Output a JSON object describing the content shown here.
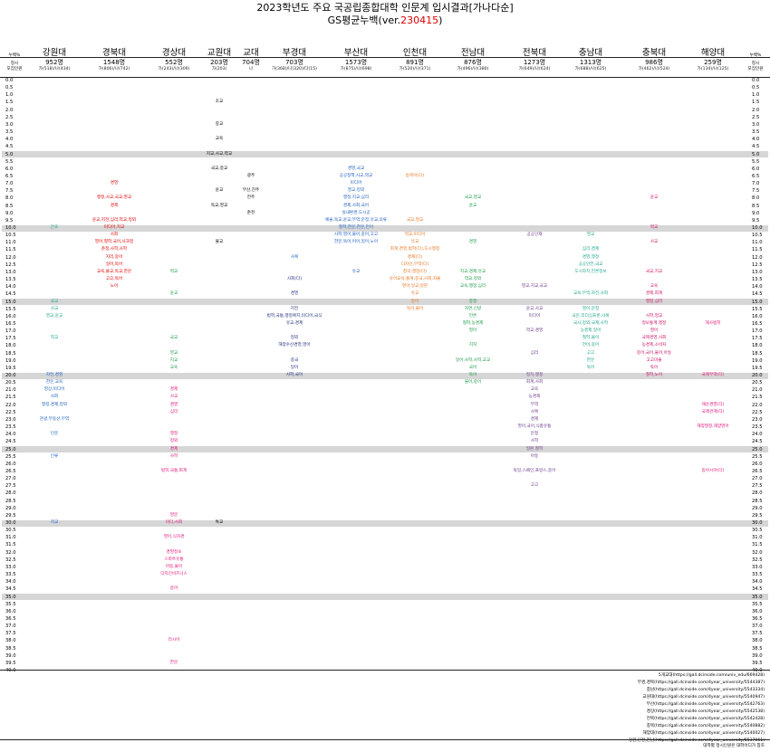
{
  "title": "2023학년도 주요 국공립종합대학 인문계 입시결과[가나다순]",
  "subtitle_prefix": "GS평균누백(ver.",
  "subtitle_version": "230415",
  "subtitle_suffix": ")",
  "side_header": {
    "top": "누백%",
    "row2a": "정시",
    "row2b": "모집인원"
  },
  "colors": {
    "red": "#e00000",
    "orange": "#e87722",
    "blue": "#1f5fbf",
    "green": "#1a9a4a",
    "purple": "#6a3a8a",
    "pink": "#e0137a",
    "magenta": "#cc1166",
    "teal": "#1ea58c",
    "navy": "#20307a",
    "black": "#000000",
    "band": "#d6d6d6"
  },
  "universities": [
    {
      "name": "강원대",
      "count": "952명",
      "sub": "가(518)/나(434)"
    },
    {
      "name": "경북대",
      "count": "1548명",
      "sub": "가(806)/나(742)"
    },
    {
      "name": "경상대",
      "count": "552명",
      "sub": "가(243)/나(309)"
    },
    {
      "name": "교원대",
      "count": "203명",
      "sub": "가(203)"
    },
    {
      "name": "교대",
      "count": "704명",
      "sub": "나"
    },
    {
      "name": "부경대",
      "count": "703명",
      "sub": "가(368)/나(320)/다(15)"
    },
    {
      "name": "부산대",
      "count": "1573명",
      "sub": "가(875)/나(698)"
    },
    {
      "name": "인천대",
      "count": "891명",
      "sub": "가(520)/나(371)"
    },
    {
      "name": "전남대",
      "count": "876명",
      "sub": "가(496)/나(380)"
    },
    {
      "name": "전북대",
      "count": "1273명",
      "sub": "가(649)/나(624)"
    },
    {
      "name": "충남대",
      "count": "1313명",
      "sub": "가(688)/나(625)"
    },
    {
      "name": "충북대",
      "count": "986명",
      "sub": "가(462)/나(524)"
    },
    {
      "name": "해양대",
      "count": "259명",
      "sub": "가(134)/나(125)"
    }
  ],
  "y_labels": [
    "0.0",
    "0.5",
    "1.0",
    "1.5",
    "2.0",
    "2.5",
    "3.0",
    "3.5",
    "4.0",
    "4.5",
    "5.0",
    "5.5",
    "6.0",
    "6.5",
    "7.0",
    "7.5",
    "8.0",
    "8.5",
    "9.0",
    "9.5",
    "10.0",
    "10.5",
    "11.0",
    "11.5",
    "12.0",
    "12.5",
    "13.0",
    "13.5",
    "14.0",
    "14.5",
    "15.0",
    "15.5",
    "16.0",
    "16.5",
    "17.0",
    "17.5",
    "18.0",
    "18.5",
    "19.0",
    "19.5",
    "20.0",
    "20.5",
    "21.0",
    "21.5",
    "22.0",
    "22.5",
    "23.0",
    "23.5",
    "24.0",
    "24.5",
    "25.0",
    "25.5",
    "26.0",
    "26.5",
    "27.0",
    "27.5",
    "28.0",
    "28.5",
    "29.0",
    "29.5",
    "30.0",
    "30.5",
    "31.0",
    "31.5",
    "32.0",
    "32.5",
    "33.0",
    "33.5",
    "34.0",
    "34.5",
    "35.0",
    "35.5",
    "36.0",
    "36.5",
    "37.0",
    "37.5",
    "38.0",
    "38.5",
    "39.0",
    "39.5",
    "40.0"
  ],
  "entries": [
    {
      "col": 3,
      "p": 1.5,
      "t": "초교",
      "c": "black"
    },
    {
      "col": 3,
      "p": 3.0,
      "t": "중교",
      "c": "black"
    },
    {
      "col": 3,
      "p": 4.0,
      "t": "교육",
      "c": "black"
    },
    {
      "col": 3,
      "p": 5.0,
      "t": "지교,사교,역교",
      "c": "black"
    },
    {
      "col": 3,
      "p": 6.0,
      "t": "국교,중교",
      "c": "black"
    },
    {
      "col": 4,
      "p": 6.5,
      "t": "광주",
      "c": "black"
    },
    {
      "col": 3,
      "p": 7.5,
      "t": "윤교",
      "c": "black"
    },
    {
      "col": 4,
      "p": 7.5,
      "t": "부산,진주",
      "c": "black"
    },
    {
      "col": 4,
      "p": 8.0,
      "t": "전주",
      "c": "black"
    },
    {
      "col": 3,
      "p": 8.5,
      "t": "독교,영교",
      "c": "black"
    },
    {
      "col": 4,
      "p": 9.0,
      "t": "춘천",
      "c": "black"
    },
    {
      "col": 3,
      "p": 11.0,
      "t": "불교",
      "c": "black"
    },
    {
      "col": 3,
      "p": 30.0,
      "t": "특교",
      "c": "black"
    },
    {
      "col": 1,
      "p": 7.0,
      "t": "경영",
      "c": "red"
    },
    {
      "col": 1,
      "p": 8.0,
      "t": "행정,사교,국교,영교",
      "c": "red"
    },
    {
      "col": 1,
      "p": 8.5,
      "t": "경제",
      "c": "red"
    },
    {
      "col": 1,
      "p": 9.5,
      "t": "윤교,지전,심리,역교,정외",
      "c": "red"
    },
    {
      "col": 1,
      "p": 10.0,
      "t": "미디어,지교",
      "c": "red"
    },
    {
      "col": 1,
      "p": 10.5,
      "t": "사회",
      "c": "red"
    },
    {
      "col": 1,
      "p": 11.0,
      "t": "영어,철학,국어,사과정",
      "c": "red"
    },
    {
      "col": 1,
      "p": 11.5,
      "t": "춘정,사학,사학",
      "c": "red"
    },
    {
      "col": 1,
      "p": 12.0,
      "t": "지리,중어",
      "c": "red"
    },
    {
      "col": 1,
      "p": 12.5,
      "t": "일어,독어",
      "c": "red"
    },
    {
      "col": 1,
      "p": 13.0,
      "t": "교육,불교,독교,한문",
      "c": "red"
    },
    {
      "col": 1,
      "p": 13.5,
      "t": "고고,독어",
      "c": "red"
    },
    {
      "col": 1,
      "p": 14.0,
      "t": "노어",
      "c": "red"
    },
    {
      "col": 6,
      "p": 6.0,
      "t": "경영,국교",
      "c": "blue"
    },
    {
      "col": 6,
      "p": 6.5,
      "t": "공공정책,사교,역교",
      "c": "blue"
    },
    {
      "col": 6,
      "p": 7.0,
      "t": "미디어",
      "c": "blue"
    },
    {
      "col": 6,
      "p": 7.5,
      "t": "영교,정외",
      "c": "blue"
    },
    {
      "col": 6,
      "p": 8.0,
      "t": "행정,지교,심리",
      "c": "blue"
    },
    {
      "col": 6,
      "p": 8.5,
      "t": "경제,사회,국어",
      "c": "blue"
    },
    {
      "col": 6,
      "p": 9.0,
      "t": "실내환경,도시공",
      "c": "blue"
    },
    {
      "col": 6,
      "p": 9.5,
      "t": "예술,독교,윤교,무역,문정,유교,의류",
      "c": "blue"
    },
    {
      "col": 6,
      "p": 10.0,
      "t": "철학,한문,한문,언어",
      "c": "blue"
    },
    {
      "col": 6,
      "p": 10.5,
      "t": "사학,영어,불어,중어,고고",
      "c": "blue"
    },
    {
      "col": 6,
      "p": 11.0,
      "t": "한문,독어,어어,일어,노어",
      "c": "blue"
    },
    {
      "col": 6,
      "p": 13.0,
      "t": "유교",
      "c": "blue"
    },
    {
      "col": 5,
      "p": 12.0,
      "t": "사복",
      "c": "blue"
    },
    {
      "col": 5,
      "p": 13.5,
      "t": "사회(다)",
      "c": "navy"
    },
    {
      "col": 5,
      "p": 14.5,
      "t": "경영",
      "c": "navy"
    },
    {
      "col": 5,
      "p": 15.5,
      "t": "지전",
      "c": "navy"
    },
    {
      "col": 5,
      "p": 16.0,
      "t": "법학,국통,행정복지,미디어,국식",
      "c": "navy"
    },
    {
      "col": 5,
      "p": 16.5,
      "t": "유교,경제",
      "c": "navy"
    },
    {
      "col": 5,
      "p": 17.5,
      "t": "정외",
      "c": "navy"
    },
    {
      "col": 5,
      "p": 18.0,
      "t": "해양수산경영,영어",
      "c": "navy"
    },
    {
      "col": 5,
      "p": 19.0,
      "t": "중국",
      "c": "navy"
    },
    {
      "col": 5,
      "p": 19.5,
      "t": "일어",
      "c": "navy"
    },
    {
      "col": 5,
      "p": 20.0,
      "t": "사학,국어",
      "c": "navy"
    },
    {
      "col": 7,
      "p": 6.5,
      "t": "동북아(다)",
      "c": "orange"
    },
    {
      "col": 7,
      "p": 9.5,
      "t": "국교,영교",
      "c": "orange"
    },
    {
      "col": 7,
      "p": 10.5,
      "t": "역교,미디어",
      "c": "orange"
    },
    {
      "col": 7,
      "p": 11.0,
      "t": "유교",
      "c": "orange"
    },
    {
      "col": 7,
      "p": 11.5,
      "t": "회계,경영,법학(다),도시행정",
      "c": "orange"
    },
    {
      "col": 7,
      "p": 12.0,
      "t": "경제(다)",
      "c": "orange"
    },
    {
      "col": 7,
      "p": 12.5,
      "t": "디자인,무역(다)",
      "c": "orange"
    },
    {
      "col": 7,
      "p": 13.0,
      "t": "창의,행정(다)",
      "c": "orange"
    },
    {
      "col": 7,
      "p": 13.5,
      "t": "유아교육,통계,중국,사회,자율",
      "c": "orange"
    },
    {
      "col": 7,
      "p": 14.0,
      "t": "영어,일교,일본",
      "c": "orange"
    },
    {
      "col": 7,
      "p": 14.5,
      "t": "유교",
      "c": "orange"
    },
    {
      "col": 7,
      "p": 15.0,
      "t": "동어",
      "c": "orange"
    },
    {
      "col": 7,
      "p": 15.5,
      "t": "독어,불어",
      "c": "orange"
    },
    {
      "col": 8,
      "p": 8.0,
      "t": "국교,영교",
      "c": "green"
    },
    {
      "col": 8,
      "p": 8.5,
      "t": "윤교",
      "c": "green"
    },
    {
      "col": 8,
      "p": 11.0,
      "t": "경영",
      "c": "green"
    },
    {
      "col": 8,
      "p": 13.0,
      "t": "지교,경제,유교",
      "c": "green"
    },
    {
      "col": 8,
      "p": 13.5,
      "t": "역교,정외",
      "c": "green"
    },
    {
      "col": 8,
      "p": 14.0,
      "t": "교육,행정,심리",
      "c": "green"
    },
    {
      "col": 8,
      "p": 15.0,
      "t": "중정",
      "c": "green"
    },
    {
      "col": 8,
      "p": 15.5,
      "t": "자연,신방",
      "c": "green"
    },
    {
      "col": 8,
      "p": 16.0,
      "t": "언론",
      "c": "green"
    },
    {
      "col": 8,
      "p": 16.5,
      "t": "철학,농경제",
      "c": "green"
    },
    {
      "col": 8,
      "p": 17.0,
      "t": "영어",
      "c": "green"
    },
    {
      "col": 8,
      "p": 18.0,
      "t": "지지",
      "c": "green"
    },
    {
      "col": 8,
      "p": 19.0,
      "t": "일어,사학,사학,교교",
      "c": "green"
    },
    {
      "col": 8,
      "p": 19.5,
      "t": "국어",
      "c": "green"
    },
    {
      "col": 8,
      "p": 20.0,
      "t": "독어",
      "c": "green"
    },
    {
      "col": 8,
      "p": 20.5,
      "t": "불어,중어",
      "c": "green"
    },
    {
      "col": 9,
      "p": 10.5,
      "t": "공공인재",
      "c": "purple"
    },
    {
      "col": 9,
      "p": 14.0,
      "t": "영교,지교,국교",
      "c": "purple"
    },
    {
      "col": 9,
      "p": 15.5,
      "t": "윤교,사교",
      "c": "purple"
    },
    {
      "col": 9,
      "p": 16.0,
      "t": "미디어",
      "c": "purple"
    },
    {
      "col": 9,
      "p": 17.0,
      "t": "역교,경영",
      "c": "purple"
    },
    {
      "col": 9,
      "p": 18.5,
      "t": "심리",
      "c": "purple"
    },
    {
      "col": 9,
      "p": 20.0,
      "t": "정치,행정",
      "c": "purple"
    },
    {
      "col": 9,
      "p": 20.5,
      "t": "회계,사회",
      "c": "purple"
    },
    {
      "col": 9,
      "p": 21.0,
      "t": "교육",
      "c": "purple"
    },
    {
      "col": 9,
      "p": 21.5,
      "t": "농경제",
      "c": "purple"
    },
    {
      "col": 9,
      "p": 22.0,
      "t": "무역",
      "c": "purple"
    },
    {
      "col": 9,
      "p": 22.5,
      "t": "사복",
      "c": "purple"
    },
    {
      "col": 9,
      "p": 23.0,
      "t": "경제",
      "c": "purple"
    },
    {
      "col": 9,
      "p": 23.5,
      "t": "영어,국어,식품유통",
      "c": "purple"
    },
    {
      "col": 9,
      "p": 24.0,
      "t": "문정",
      "c": "purple"
    },
    {
      "col": 9,
      "p": 24.5,
      "t": "사학",
      "c": "purple"
    },
    {
      "col": 9,
      "p": 25.0,
      "t": "일본,철학",
      "c": "purple"
    },
    {
      "col": 9,
      "p": 25.5,
      "t": "아동",
      "c": "purple"
    },
    {
      "col": 9,
      "p": 26.5,
      "t": "독일,스페인,프랑스,중어",
      "c": "purple"
    },
    {
      "col": 9,
      "p": 27.5,
      "t": "고고",
      "c": "purple"
    },
    {
      "col": 10,
      "p": 10.5,
      "t": "영교",
      "c": "teal"
    },
    {
      "col": 10,
      "p": 11.5,
      "t": "심리,경제",
      "c": "teal"
    },
    {
      "col": 10,
      "p": 12.0,
      "t": "경영,행정",
      "c": "teal"
    },
    {
      "col": 10,
      "p": 12.5,
      "t": "공공안전,국교",
      "c": "teal"
    },
    {
      "col": 10,
      "p": 13.0,
      "t": "도시자치,언론정보",
      "c": "teal"
    },
    {
      "col": 10,
      "p": 14.5,
      "t": "교육,무역,자전,사회",
      "c": "teal"
    },
    {
      "col": 10,
      "p": 15.5,
      "t": "영어,문정",
      "c": "teal"
    },
    {
      "col": 10,
      "p": 16.0,
      "t": "국문,리더십프론,사복",
      "c": "teal"
    },
    {
      "col": 10,
      "p": 16.5,
      "t": "국사,정외,국제,사학",
      "c": "teal"
    },
    {
      "col": 10,
      "p": 17.0,
      "t": "농경제,일어",
      "c": "teal"
    },
    {
      "col": 10,
      "p": 17.5,
      "t": "철학,불어",
      "c": "teal"
    },
    {
      "col": 10,
      "p": 18.0,
      "t": "언어,중어",
      "c": "teal"
    },
    {
      "col": 10,
      "p": 18.5,
      "t": "고고",
      "c": "teal"
    },
    {
      "col": 10,
      "p": 19.0,
      "t": "한문",
      "c": "teal"
    },
    {
      "col": 10,
      "p": 19.5,
      "t": "독어",
      "c": "teal"
    },
    {
      "col": 11,
      "p": 8.0,
      "t": "윤교",
      "c": "magenta"
    },
    {
      "col": 11,
      "p": 10.0,
      "t": "역교",
      "c": "magenta"
    },
    {
      "col": 11,
      "p": 11.0,
      "t": "사교",
      "c": "magenta"
    },
    {
      "col": 11,
      "p": 13.0,
      "t": "국교,지교",
      "c": "magenta"
    },
    {
      "col": 11,
      "p": 14.0,
      "t": "교육",
      "c": "magenta"
    },
    {
      "col": 11,
      "p": 14.5,
      "t": "경제,회계",
      "c": "magenta"
    },
    {
      "col": 11,
      "p": 15.0,
      "t": "행정,심리",
      "c": "magenta"
    },
    {
      "col": 11,
      "p": 16.0,
      "t": "사학,영교",
      "c": "magenta"
    },
    {
      "col": 11,
      "p": 16.5,
      "t": "정보통계,행정",
      "c": "magenta"
    },
    {
      "col": 11,
      "p": 17.0,
      "t": "영어",
      "c": "magenta"
    },
    {
      "col": 11,
      "p": 17.5,
      "t": "국제경영,사회",
      "c": "magenta"
    },
    {
      "col": 11,
      "p": 18.0,
      "t": "농경제,소비자",
      "c": "magenta"
    },
    {
      "col": 11,
      "p": 18.5,
      "t": "중어,국어,불어,아동",
      "c": "magenta"
    },
    {
      "col": 11,
      "p": 19.0,
      "t": "고고미술",
      "c": "magenta"
    },
    {
      "col": 11,
      "p": 19.5,
      "t": "독어",
      "c": "magenta"
    },
    {
      "col": 11,
      "p": 20.0,
      "t": "철학,노어",
      "c": "magenta"
    },
    {
      "col": 12,
      "p": 16.5,
      "t": "해사법학",
      "c": "pink"
    },
    {
      "col": 12,
      "p": 20.0,
      "t": "국제무역(다)",
      "c": "pink"
    },
    {
      "col": 12,
      "p": 22.0,
      "t": "해운경영(다)",
      "c": "pink"
    },
    {
      "col": 12,
      "p": 22.5,
      "t": "국제관계(다)",
      "c": "pink"
    },
    {
      "col": 12,
      "p": 23.5,
      "t": "해양행정,해양영어",
      "c": "pink"
    },
    {
      "col": 12,
      "p": 26.5,
      "t": "동아시아(다)",
      "c": "pink"
    },
    {
      "col": 0,
      "p": 10.0,
      "t": "간호",
      "c": "teal"
    },
    {
      "col": 0,
      "p": 15.0,
      "t": "국교",
      "c": "teal"
    },
    {
      "col": 0,
      "p": 15.5,
      "t": "사교",
      "c": "teal"
    },
    {
      "col": 0,
      "p": 16.0,
      "t": "영교,윤교",
      "c": "teal"
    },
    {
      "col": 0,
      "p": 17.5,
      "t": "역교",
      "c": "teal"
    },
    {
      "col": 0,
      "p": 20.0,
      "t": "자전,경영",
      "c": "blue"
    },
    {
      "col": 0,
      "p": 20.5,
      "t": "한문,교육",
      "c": "blue"
    },
    {
      "col": 0,
      "p": 21.0,
      "t": "영상,미디어",
      "c": "blue"
    },
    {
      "col": 0,
      "p": 21.5,
      "t": "사회",
      "c": "blue"
    },
    {
      "col": 0,
      "p": 22.0,
      "t": "행정,경제,정외",
      "c": "blue"
    },
    {
      "col": 0,
      "p": 23.0,
      "t": "관광,부동산,무역",
      "c": "blue"
    },
    {
      "col": 0,
      "p": 24.0,
      "t": "인문",
      "c": "blue"
    },
    {
      "col": 0,
      "p": 25.5,
      "t": "인류",
      "c": "blue"
    },
    {
      "col": 0,
      "p": 30.0,
      "t": "지교",
      "c": "blue"
    },
    {
      "col": 2,
      "p": 13.0,
      "t": "역교",
      "c": "green"
    },
    {
      "col": 2,
      "p": 14.5,
      "t": "윤교",
      "c": "green"
    },
    {
      "col": 2,
      "p": 17.5,
      "t": "국교",
      "c": "green"
    },
    {
      "col": 2,
      "p": 18.5,
      "t": "영교",
      "c": "green"
    },
    {
      "col": 2,
      "p": 19.0,
      "t": "지교",
      "c": "green"
    },
    {
      "col": 2,
      "p": 19.5,
      "t": "교육",
      "c": "green"
    },
    {
      "col": 2,
      "p": 21.0,
      "t": "경제",
      "c": "pink"
    },
    {
      "col": 2,
      "p": 21.5,
      "t": "사교",
      "c": "pink"
    },
    {
      "col": 2,
      "p": 22.0,
      "t": "경영",
      "c": "pink"
    },
    {
      "col": 2,
      "p": 22.5,
      "t": "심리",
      "c": "pink"
    },
    {
      "col": 2,
      "p": 24.0,
      "t": "행정",
      "c": "pink"
    },
    {
      "col": 2,
      "p": 24.5,
      "t": "정외",
      "c": "pink"
    },
    {
      "col": 2,
      "p": 25.0,
      "t": "경제",
      "c": "pink"
    },
    {
      "col": 2,
      "p": 25.5,
      "t": "사학",
      "c": "pink"
    },
    {
      "col": 2,
      "p": 26.5,
      "t": "법학,국통,회계",
      "c": "pink"
    },
    {
      "col": 2,
      "p": 29.5,
      "t": "영문",
      "c": "pink"
    },
    {
      "col": 2,
      "p": 30.0,
      "t": "미디,사회",
      "c": "pink"
    },
    {
      "col": 2,
      "p": 31.0,
      "t": "영어,식자경",
      "c": "pink"
    },
    {
      "col": 2,
      "p": 32.0,
      "t": "경영정보",
      "c": "pink"
    },
    {
      "col": 2,
      "p": 32.5,
      "t": "스마트유통",
      "c": "pink"
    },
    {
      "col": 2,
      "p": 33.0,
      "t": "아동,불어",
      "c": "pink"
    },
    {
      "col": 2,
      "p": 33.5,
      "t": "디지인비즈니스",
      "c": "pink"
    },
    {
      "col": 2,
      "p": 34.5,
      "t": "중어",
      "c": "pink"
    },
    {
      "col": 2,
      "p": 38.0,
      "t": "러시아",
      "c": "pink"
    },
    {
      "col": 2,
      "p": 39.5,
      "t": "한문",
      "c": "pink"
    }
  ],
  "footer": [
    "5개교대(https://gall.dcinside.com/univ_edu/669428)",
    "부경,경북(https://gall.dcinside.com/4year_university/5544387)",
    "충남(https://gall.dcinside.com/4year_university/5543334)",
    "교원대(https://gall.dcinside.com/4year_university/5540947)",
    "부산(https://gall.dcinside.com/4year_university/5542763)",
    "경상(https://gall.dcinside.com/4year_university/5542538)",
    "전북(https://gall.dcinside.com/4year_university/5542428)",
    "충북(https://gall.dcinside.com/4year_university/5540882)",
    "해양대(https://gall.dcinside.com/4year_university/5540027)",
    "강원,인천,전남(https://gall.dcinside.com/4year_university/5537061)"
  ],
  "footer_note": "대학별 정시인원은 대학어디가 참조"
}
